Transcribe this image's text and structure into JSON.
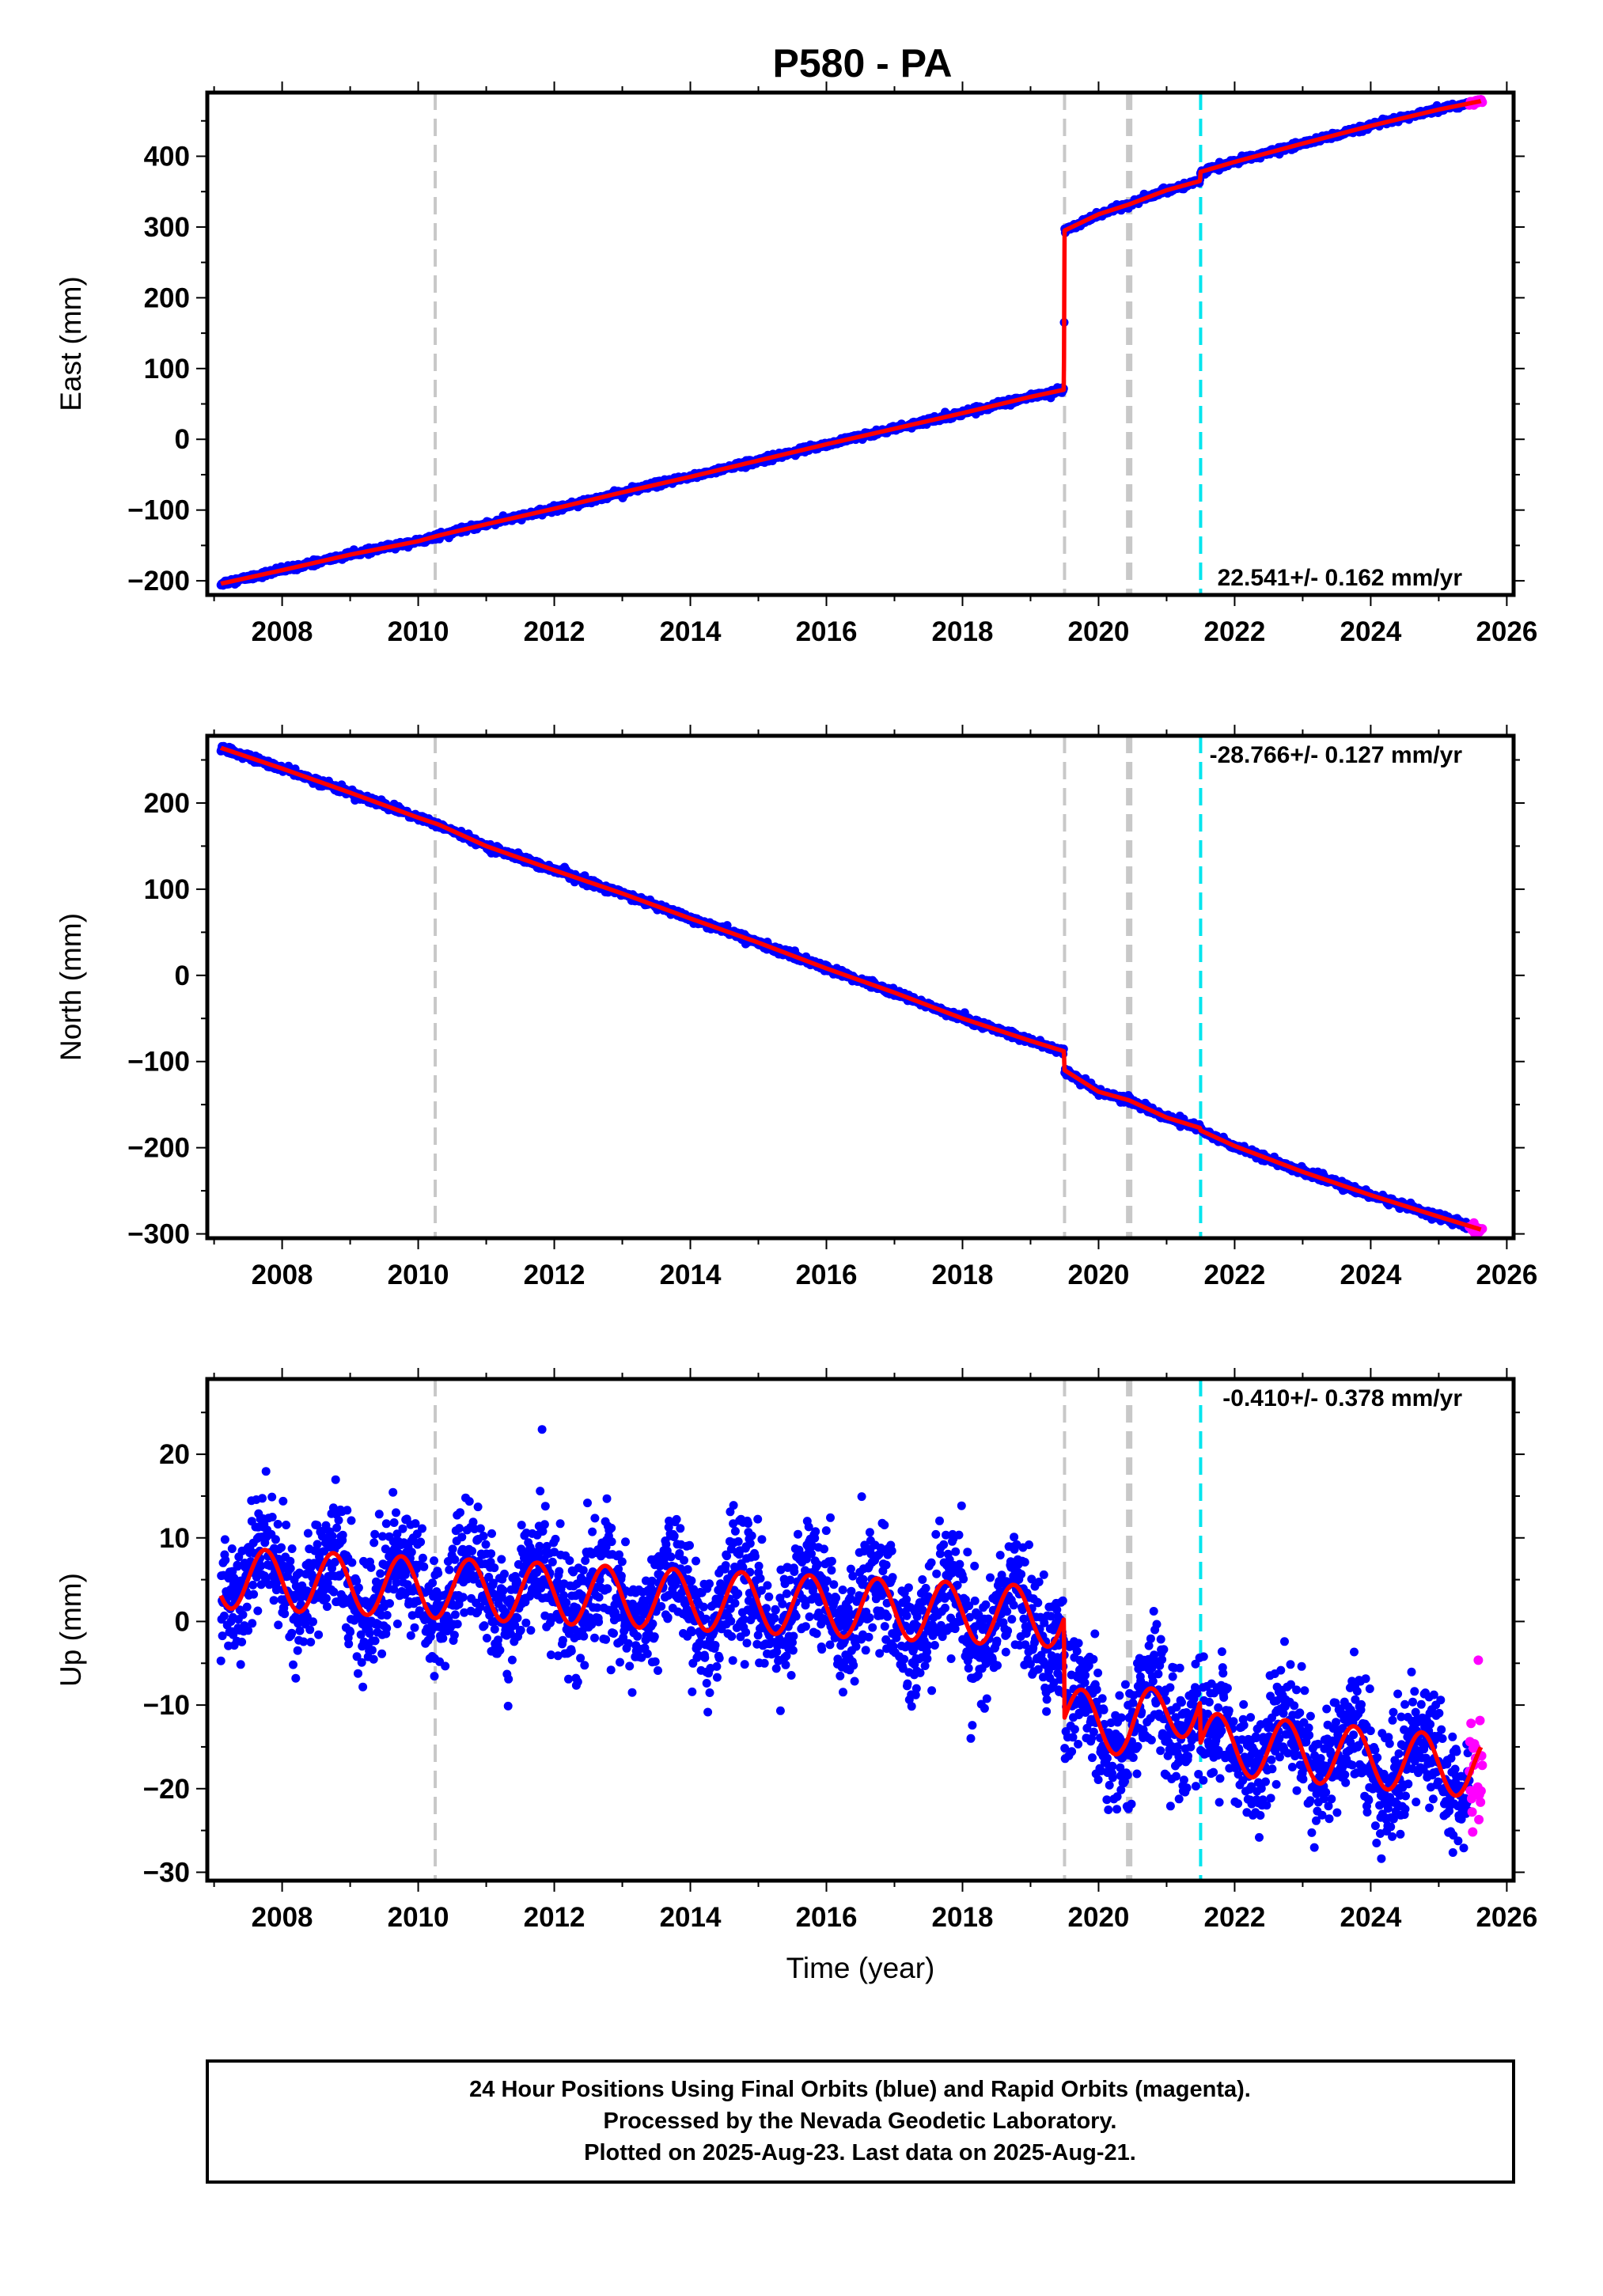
{
  "title": "P580 - PA",
  "colors": {
    "final_orbits": "#0000ff",
    "rapid_orbits": "#ff00ff",
    "model": "#ff0000",
    "event_gray": "#c8c8c8",
    "event_cyan": "#00e5ee"
  },
  "chart_data": [
    {
      "type": "scatter",
      "panel": "east",
      "ylabel": "East (mm)",
      "xlabel": "",
      "xlim": [
        2006.9,
        2026.1
      ],
      "ylim": [
        -220,
        490
      ],
      "xticks": [
        2008,
        2010,
        2012,
        2014,
        2016,
        2018,
        2020,
        2022,
        2024,
        2026
      ],
      "yticks": [
        -200,
        -100,
        0,
        100,
        200,
        300,
        400
      ],
      "rate_text": "22.541+/- 0.162 mm/yr",
      "rate_position": "bottom-right",
      "event_lines": [
        {
          "x": 2010.25,
          "color": "gray",
          "style": "dashed"
        },
        {
          "x": 2019.5,
          "color": "gray",
          "style": "dashed"
        },
        {
          "x": 2020.45,
          "color": "gray",
          "style": "dashed-thick"
        },
        {
          "x": 2021.5,
          "color": "cyan",
          "style": "dashed"
        }
      ],
      "model_knots": [
        [
          2007.1,
          -204
        ],
        [
          2008.0,
          -185
        ],
        [
          2009.0,
          -163
        ],
        [
          2010.0,
          -144
        ],
        [
          2010.3,
          -136
        ],
        [
          2011.0,
          -120
        ],
        [
          2012.0,
          -98
        ],
        [
          2013.0,
          -75
        ],
        [
          2014.0,
          -53
        ],
        [
          2015.0,
          -30
        ],
        [
          2016.0,
          -7
        ],
        [
          2017.0,
          15
        ],
        [
          2018.0,
          37
        ],
        [
          2019.0,
          60
        ],
        [
          2019.49,
          70
        ],
        [
          2019.5,
          295
        ],
        [
          2020.0,
          318
        ],
        [
          2020.45,
          332
        ],
        [
          2021.0,
          352
        ],
        [
          2021.49,
          365
        ],
        [
          2021.5,
          378
        ],
        [
          2022.0,
          392
        ],
        [
          2023.0,
          418
        ],
        [
          2024.0,
          443
        ],
        [
          2025.0,
          466
        ],
        [
          2025.62,
          478
        ]
      ],
      "noise_mm": 2.0,
      "rapid_range": [
        2025.45,
        2025.64
      ]
    },
    {
      "type": "scatter",
      "panel": "north",
      "ylabel": "North (mm)",
      "xlabel": "",
      "xlim": [
        2006.9,
        2026.1
      ],
      "ylim": [
        -305,
        278
      ],
      "xticks": [
        2008,
        2010,
        2012,
        2014,
        2016,
        2018,
        2020,
        2022,
        2024,
        2026
      ],
      "yticks": [
        -300,
        -200,
        -100,
        0,
        100,
        200
      ],
      "rate_text": "-28.766+/- 0.127 mm/yr",
      "rate_position": "top-right",
      "event_lines": [
        {
          "x": 2010.25,
          "color": "gray",
          "style": "dashed"
        },
        {
          "x": 2019.5,
          "color": "gray",
          "style": "dashed"
        },
        {
          "x": 2020.45,
          "color": "gray",
          "style": "dashed-thick"
        },
        {
          "x": 2021.5,
          "color": "cyan",
          "style": "dashed"
        }
      ],
      "model_knots": [
        [
          2007.1,
          264
        ],
        [
          2008.0,
          240
        ],
        [
          2009.0,
          212
        ],
        [
          2010.0,
          183
        ],
        [
          2010.3,
          175
        ],
        [
          2011.0,
          150
        ],
        [
          2012.0,
          122
        ],
        [
          2013.0,
          95
        ],
        [
          2014.0,
          66
        ],
        [
          2015.0,
          38
        ],
        [
          2016.0,
          8
        ],
        [
          2017.0,
          -20
        ],
        [
          2018.0,
          -50
        ],
        [
          2019.0,
          -76
        ],
        [
          2019.49,
          -88
        ],
        [
          2019.5,
          -110
        ],
        [
          2020.0,
          -135
        ],
        [
          2020.45,
          -145
        ],
        [
          2021.0,
          -165
        ],
        [
          2021.49,
          -177
        ],
        [
          2021.5,
          -180
        ],
        [
          2022.0,
          -198
        ],
        [
          2023.0,
          -228
        ],
        [
          2024.0,
          -255
        ],
        [
          2025.0,
          -280
        ],
        [
          2025.62,
          -295
        ]
      ],
      "noise_mm": 2.0,
      "rapid_range": [
        2025.45,
        2025.64
      ]
    },
    {
      "type": "scatter",
      "panel": "up",
      "ylabel": "Up (mm)",
      "xlabel": "Time (year)",
      "xlim": [
        2006.9,
        2026.1
      ],
      "ylim": [
        -31,
        29
      ],
      "xticks": [
        2008,
        2010,
        2012,
        2014,
        2016,
        2018,
        2020,
        2022,
        2024,
        2026
      ],
      "yticks": [
        -30,
        -20,
        -10,
        0,
        10,
        20
      ],
      "rate_text": "-0.410+/- 0.378 mm/yr",
      "rate_position": "top-right",
      "event_lines": [
        {
          "x": 2010.25,
          "color": "gray",
          "style": "dashed"
        },
        {
          "x": 2019.5,
          "color": "gray",
          "style": "dashed"
        },
        {
          "x": 2020.45,
          "color": "gray",
          "style": "dashed-thick"
        },
        {
          "x": 2021.5,
          "color": "cyan",
          "style": "dashed"
        }
      ],
      "model_base": [
        [
          2007.1,
          5.2
        ],
        [
          2019.49,
          0.5
        ],
        [
          2019.5,
          -11.5
        ],
        [
          2020.45,
          -12.5
        ],
        [
          2021.49,
          -9.5
        ],
        [
          2021.5,
          -14.5
        ],
        [
          2025.62,
          -17.5
        ]
      ],
      "seasonal_amplitude_mm": 3.6,
      "seasonal_peak_year_fraction": 0.75,
      "noise_mm": 3.6,
      "rapid_range": [
        2025.45,
        2025.64
      ]
    }
  ],
  "footer": {
    "line1": "24 Hour Positions Using Final Orbits (blue) and Rapid Orbits (magenta).",
    "line2": "Processed by the Nevada Geodetic Laboratory.",
    "line3": "Plotted on 2025-Aug-23. Last data on 2025-Aug-21."
  }
}
